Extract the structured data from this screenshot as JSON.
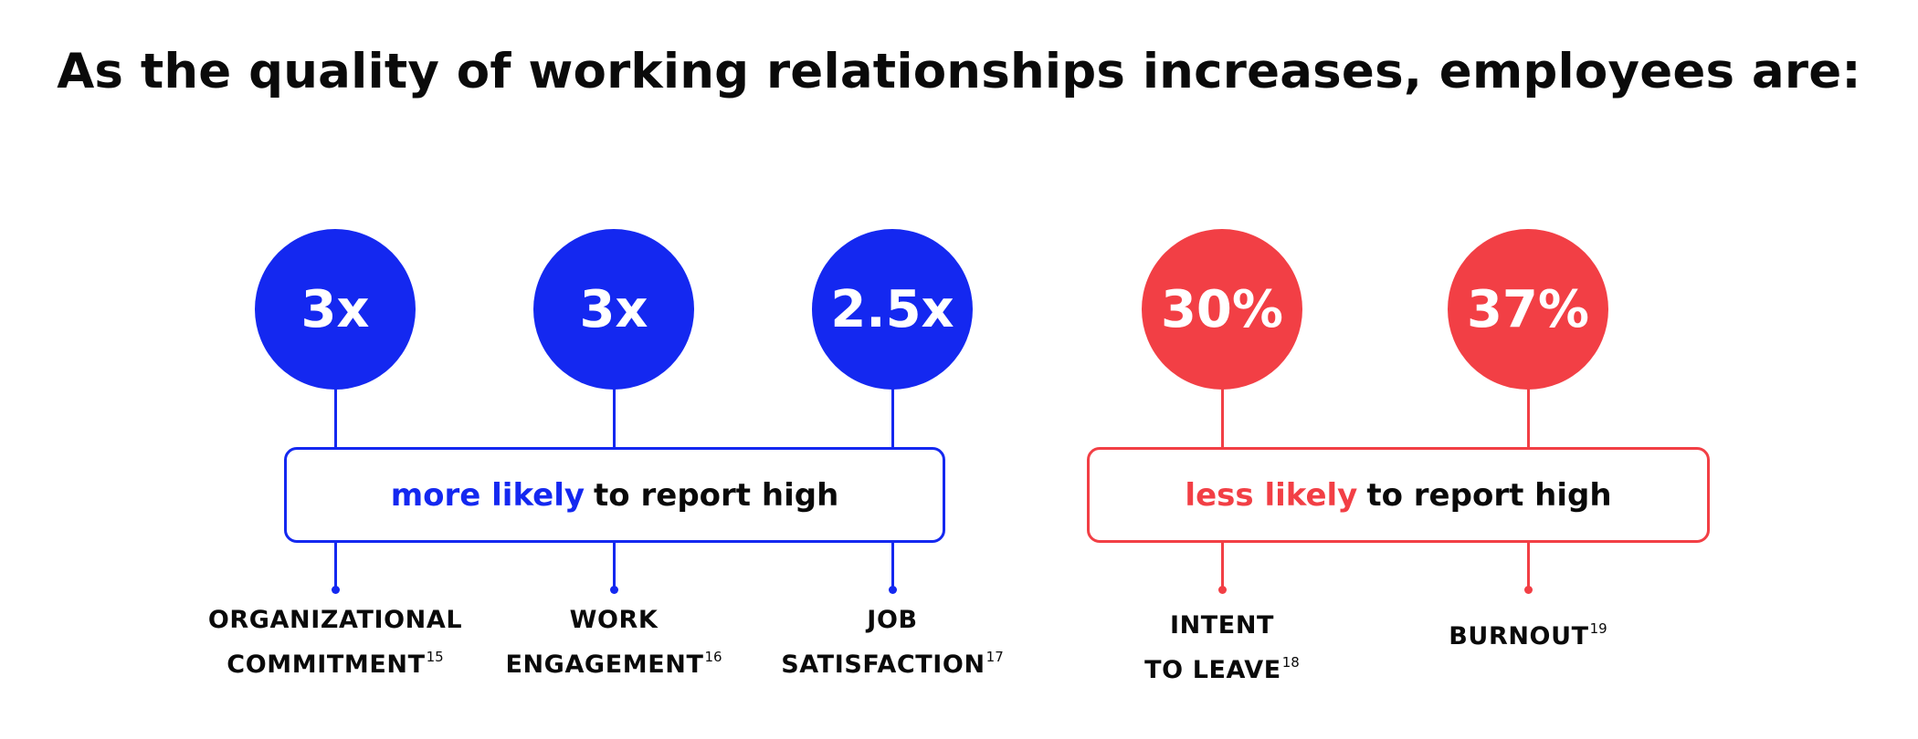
{
  "title": "As the quality of working relationships increases, employees are:",
  "colors": {
    "more": "#1428f0",
    "less": "#f23f45",
    "text": "#0a0a0a"
  },
  "more_group": {
    "highlight": "more likely",
    "rest": "to report high",
    "items": [
      {
        "value": "3x",
        "line1": "ORGANIZATIONAL",
        "line2": "COMMITMENT",
        "ref": "15"
      },
      {
        "value": "3x",
        "line1": "WORK",
        "line2": "ENGAGEMENT",
        "ref": "16"
      },
      {
        "value": "2.5x",
        "line1": "JOB",
        "line2": "SATISFACTION",
        "ref": "17"
      }
    ]
  },
  "less_group": {
    "highlight": "less likely",
    "rest": "to report high",
    "items": [
      {
        "value": "30%",
        "line1": "INTENT",
        "line2": "TO LEAVE",
        "ref": "18"
      },
      {
        "value": "37%",
        "line1": "BURNOUT",
        "ref": "19"
      }
    ]
  }
}
